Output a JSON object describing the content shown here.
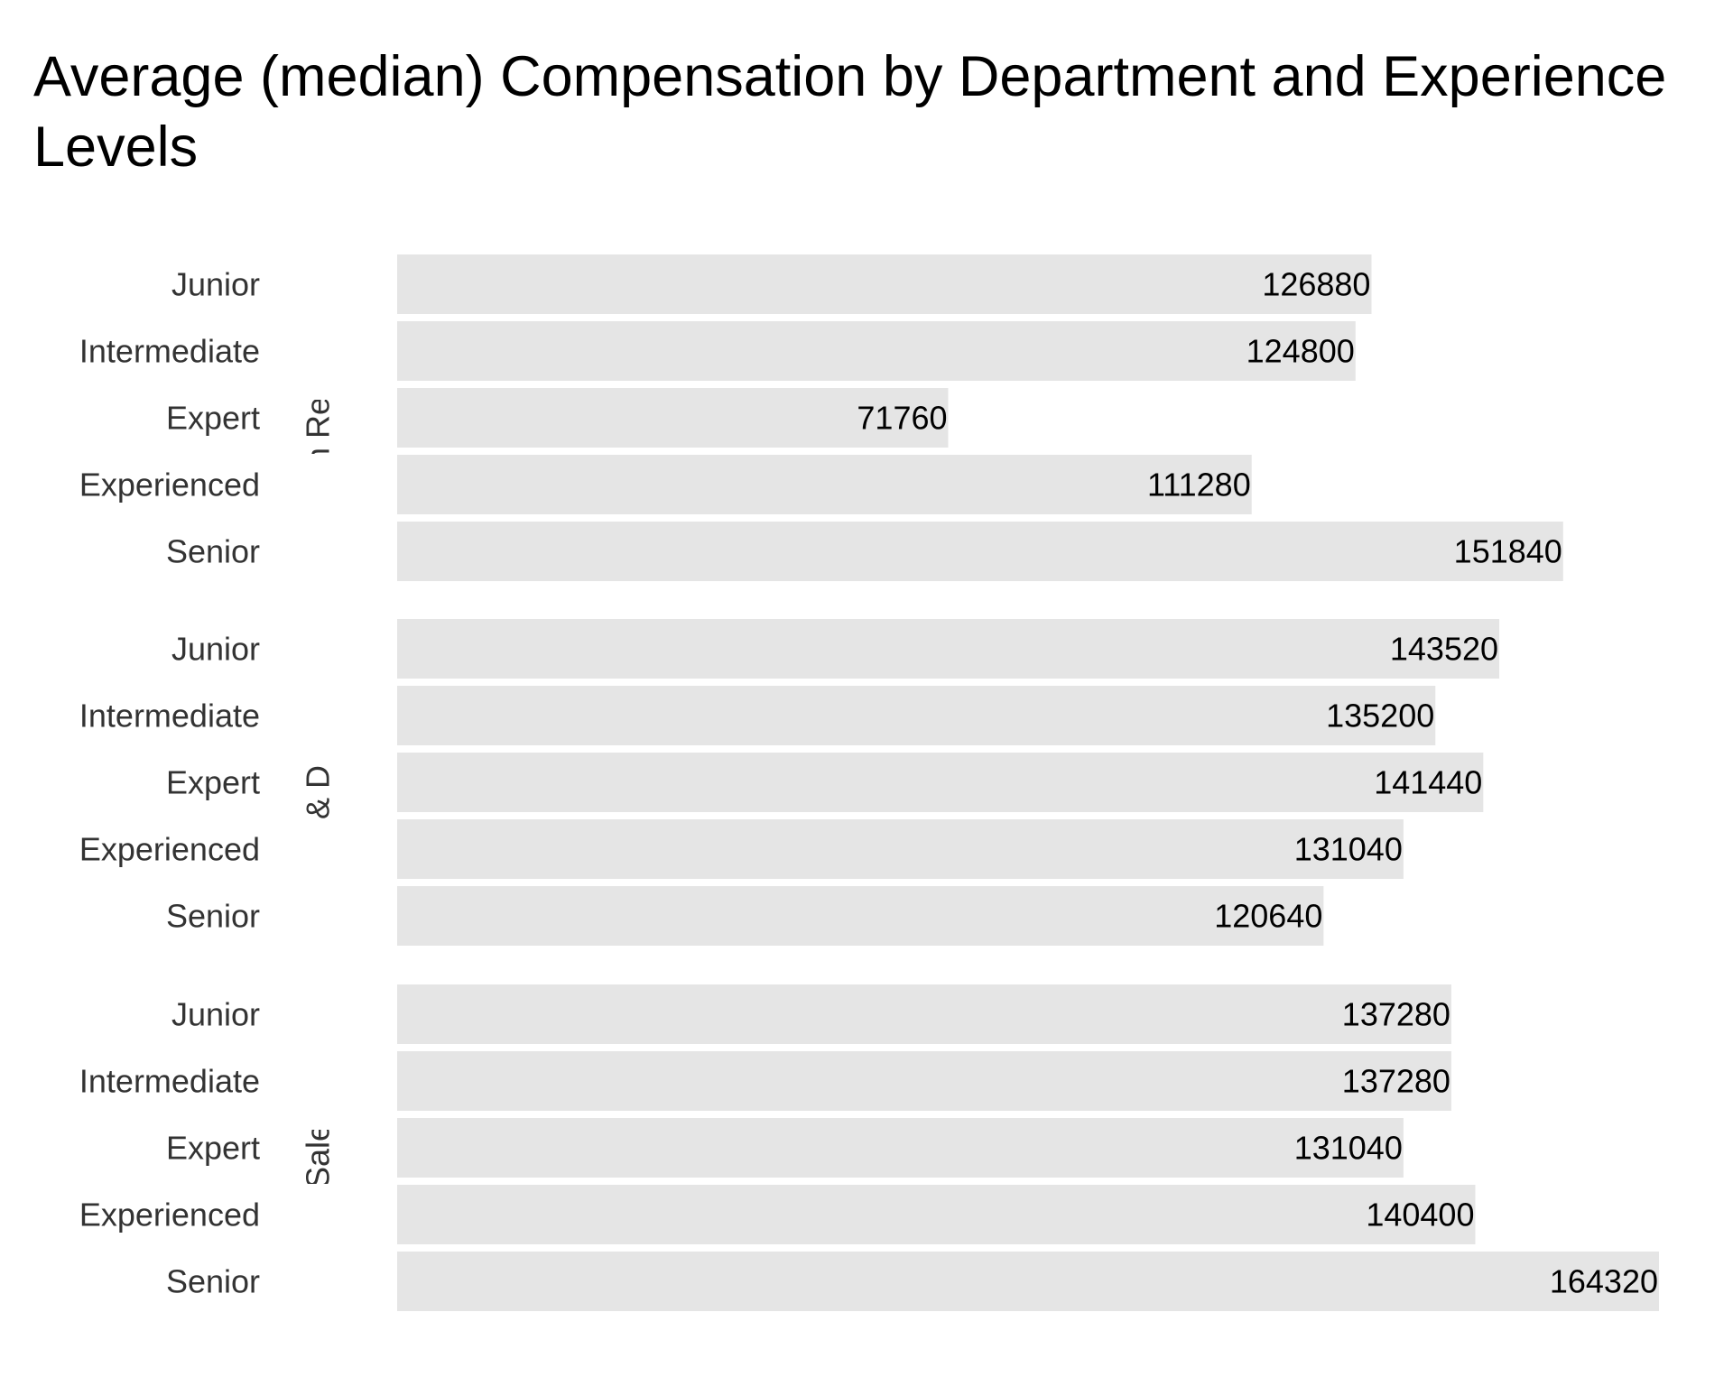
{
  "chart_data": {
    "type": "bar",
    "orientation": "horizontal",
    "title": "Average (median) Compensation by Department and Experience Levels",
    "xlabel": "",
    "ylabel": "",
    "grid": false,
    "bar_color": "#e5e5e5",
    "xlim": [
      0,
      164320
    ],
    "facets": [
      {
        "name": "Human Resources",
        "categories": [
          "Junior",
          "Intermediate",
          "Expert",
          "Experienced",
          "Senior"
        ],
        "values": [
          126880,
          124800,
          71760,
          111280,
          151840
        ]
      },
      {
        "name": "Research & Development",
        "categories": [
          "Junior",
          "Intermediate",
          "Expert",
          "Experienced",
          "Senior"
        ],
        "values": [
          143520,
          135200,
          141440,
          131040,
          120640
        ]
      },
      {
        "name": "Sales",
        "categories": [
          "Junior",
          "Intermediate",
          "Expert",
          "Experienced",
          "Senior"
        ],
        "values": [
          137280,
          137280,
          131040,
          140400,
          164320
        ]
      }
    ]
  }
}
